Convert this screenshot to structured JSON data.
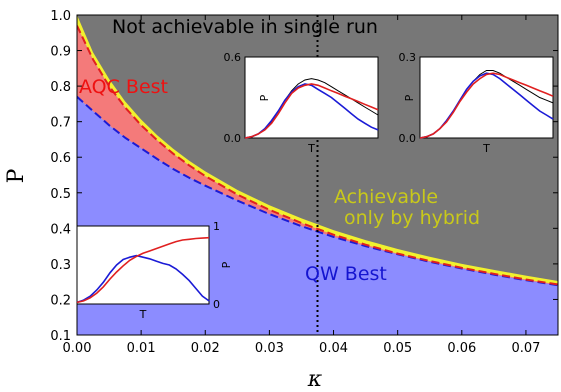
{
  "chart_data": {
    "type": "area",
    "xlabel": "κ",
    "ylabel": "P",
    "xlim": [
      0.0,
      0.075
    ],
    "ylim": [
      0.1,
      1.0
    ],
    "xticks": [
      "0.00",
      "0.01",
      "0.02",
      "0.03",
      "0.04",
      "0.05",
      "0.06",
      "0.07"
    ],
    "yticks": [
      "0.1",
      "0.2",
      "0.3",
      "0.4",
      "0.5",
      "0.6",
      "0.7",
      "0.8",
      "0.9",
      "1.0"
    ],
    "vertical_line_x": 0.0375,
    "colors": {
      "not_achievable": "#777777",
      "aqc": "#f47a7a",
      "qw": "#8c8cff",
      "hybrid": "#f1f12e",
      "qw_curve": "#1b1bd6",
      "aqc_curve": "#e02020",
      "region_text_top": "#000000",
      "region_text_aqc": "#ee1111",
      "region_text_hybrid": "#c9c91a",
      "region_text_qw": "#1515d0"
    },
    "region_labels": {
      "not_achievable": "Not achievable in single run",
      "aqc": "AQC Best",
      "hybrid_line1": "Achievable",
      "hybrid_line2": "only by hybrid",
      "qw": "QW Best"
    },
    "boundaries": {
      "kappa": [
        0.0,
        0.0025,
        0.005,
        0.0075,
        0.01,
        0.0125,
        0.015,
        0.0175,
        0.02,
        0.025,
        0.03,
        0.035,
        0.04,
        0.045,
        0.05,
        0.055,
        0.06,
        0.065,
        0.07,
        0.075
      ],
      "qw_best": [
        0.77,
        0.73,
        0.69,
        0.655,
        0.625,
        0.595,
        0.567,
        0.542,
        0.52,
        0.478,
        0.44,
        0.406,
        0.376,
        0.35,
        0.327,
        0.306,
        0.287,
        0.27,
        0.254,
        0.24
      ],
      "aqc_best": [
        0.97,
        0.875,
        0.8,
        0.74,
        0.69,
        0.648,
        0.61,
        0.577,
        0.547,
        0.495,
        0.452,
        0.415,
        0.382,
        0.354,
        0.329,
        0.308,
        0.289,
        0.272,
        0.256,
        0.242
      ],
      "hybrid_top": [
        1.0,
        0.895,
        0.82,
        0.757,
        0.706,
        0.662,
        0.624,
        0.59,
        0.56,
        0.508,
        0.465,
        0.428,
        0.395,
        0.367,
        0.342,
        0.32,
        0.3,
        0.283,
        0.267,
        0.252
      ]
    },
    "insets": [
      {
        "name": "inset-bottom-left",
        "xlabel": "T",
        "ylabel": "P",
        "yticks": [
          "0",
          "1"
        ],
        "t": [
          0,
          0.05,
          0.1,
          0.15,
          0.2,
          0.25,
          0.3,
          0.35,
          0.4,
          0.45,
          0.5,
          0.55,
          0.6,
          0.65,
          0.7,
          0.75,
          0.8,
          0.85,
          0.9,
          0.95,
          1.0
        ],
        "qw": [
          0.02,
          0.05,
          0.1,
          0.18,
          0.28,
          0.4,
          0.5,
          0.57,
          0.6,
          0.62,
          0.6,
          0.58,
          0.55,
          0.52,
          0.5,
          0.45,
          0.38,
          0.3,
          0.2,
          0.1,
          0.04
        ],
        "aqc": [
          0.02,
          0.04,
          0.08,
          0.14,
          0.22,
          0.32,
          0.41,
          0.49,
          0.56,
          0.61,
          0.65,
          0.68,
          0.71,
          0.74,
          0.77,
          0.8,
          0.82,
          0.83,
          0.84,
          0.845,
          0.85
        ]
      },
      {
        "name": "inset-top-middle",
        "xlabel": "T",
        "ylabel": "P",
        "yticks": [
          "0.0",
          "0.6"
        ],
        "t": [
          0,
          0.05,
          0.1,
          0.15,
          0.2,
          0.25,
          0.3,
          0.35,
          0.4,
          0.45,
          0.5,
          0.55,
          0.6,
          0.65,
          0.7,
          0.75,
          0.8,
          0.85,
          0.9,
          0.95,
          1.0
        ],
        "qw": [
          0.0,
          0.01,
          0.03,
          0.07,
          0.13,
          0.2,
          0.28,
          0.34,
          0.38,
          0.4,
          0.39,
          0.36,
          0.33,
          0.3,
          0.26,
          0.22,
          0.18,
          0.14,
          0.11,
          0.08,
          0.06
        ],
        "aqc": [
          0.0,
          0.01,
          0.03,
          0.06,
          0.11,
          0.18,
          0.26,
          0.33,
          0.37,
          0.39,
          0.4,
          0.39,
          0.37,
          0.35,
          0.33,
          0.31,
          0.29,
          0.27,
          0.25,
          0.23,
          0.21
        ],
        "hybrid": [
          0.0,
          0.01,
          0.03,
          0.07,
          0.12,
          0.2,
          0.28,
          0.35,
          0.4,
          0.43,
          0.44,
          0.43,
          0.41,
          0.38,
          0.35,
          0.32,
          0.29,
          0.26,
          0.23,
          0.2,
          0.17
        ]
      },
      {
        "name": "inset-top-right",
        "xlabel": "T",
        "ylabel": "P",
        "yticks": [
          "0.0",
          "0.3"
        ],
        "t": [
          0,
          0.05,
          0.1,
          0.15,
          0.2,
          0.25,
          0.3,
          0.35,
          0.4,
          0.45,
          0.5,
          0.55,
          0.6,
          0.65,
          0.7,
          0.75,
          0.8,
          0.85,
          0.9,
          0.95,
          1.0
        ],
        "qw": [
          0.0,
          0.005,
          0.015,
          0.035,
          0.065,
          0.1,
          0.14,
          0.18,
          0.21,
          0.23,
          0.24,
          0.235,
          0.22,
          0.2,
          0.18,
          0.16,
          0.14,
          0.12,
          0.1,
          0.085,
          0.07
        ],
        "aqc": [
          0.0,
          0.005,
          0.015,
          0.035,
          0.06,
          0.095,
          0.135,
          0.17,
          0.2,
          0.22,
          0.235,
          0.24,
          0.235,
          0.225,
          0.215,
          0.205,
          0.195,
          0.185,
          0.175,
          0.165,
          0.155
        ],
        "hybrid": [
          0.0,
          0.005,
          0.015,
          0.035,
          0.065,
          0.1,
          0.14,
          0.18,
          0.21,
          0.235,
          0.25,
          0.25,
          0.24,
          0.225,
          0.21,
          0.195,
          0.18,
          0.165,
          0.15,
          0.14,
          0.13
        ]
      }
    ]
  }
}
